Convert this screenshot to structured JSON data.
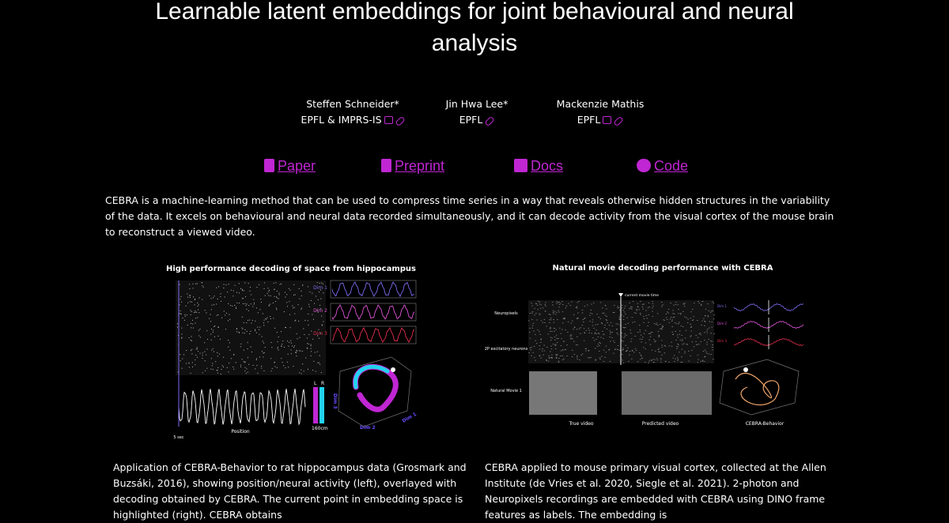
{
  "header": {
    "title": "Learnable latent embeddings for joint behavioural and neural analysis"
  },
  "authors": [
    {
      "name": "Steffen Schneider*",
      "affiliation": "EPFL & IMPRS-IS"
    },
    {
      "name": "Jin Hwa Lee*",
      "affiliation": "EPFL"
    },
    {
      "name": "Mackenzie Mathis",
      "affiliation": "EPFL"
    }
  ],
  "links": [
    "Paper",
    "Preprint",
    "Docs",
    "Code"
  ],
  "abstract": "CEBRA is a machine-learning method that can be used to compress time series in a way that reveals otherwise hidden structures in the variability of the data. It excels on behavioural and neural data recorded simultaneously, and it can decode activity from the visual cortex of the mouse brain to reconstruct a viewed video.",
  "figures": [
    {
      "title": "High performance decoding of space from hippocampus",
      "labels": [
        "Dim 1",
        "Dim 2",
        "Dim 3",
        "Position",
        "5 sec",
        "L",
        "R",
        "160cm",
        "Dim 1",
        "Dim 2",
        "Dim 3"
      ],
      "caption": "Application of CEBRA-Behavior to rat hippocampus data (Grosmark and Buzsáki, 2016), showing position/neural activity (left), overlayed with decoding obtained by CEBRA. The current point in embedding space is highlighted (right). CEBRA obtains"
    },
    {
      "title": "Natural movie decoding performance with CEBRA",
      "labels": [
        "current movie time",
        "Neuropixels",
        "2P excitatory neurons",
        "Natural Movie 1",
        "True video",
        "Predicted video",
        "CEBRA-Behavior",
        "Dim 1",
        "Dim 2",
        "Dim 3"
      ],
      "caption": "CEBRA applied to mouse primary visual cortex, collected at the Allen Institute (de Vries et al. 2020, Siegle et al. 2021). 2-photon and Neuropixels recordings are embedded with CEBRA using DINO frame features as labels. The embedding is"
    }
  ]
}
